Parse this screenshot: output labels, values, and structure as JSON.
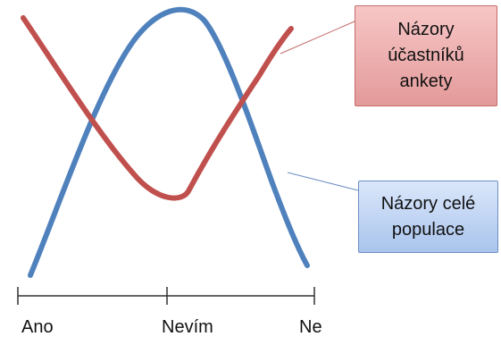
{
  "callouts": {
    "survey": "Názory\núčastníků\nankety",
    "population": "Názory celé\npopulace"
  },
  "axis": {
    "labels": [
      "Ano",
      "Nevím",
      "Ne"
    ]
  },
  "colors": {
    "survey_curve": "#c0504d",
    "population_curve": "#4f81bd",
    "axis": "#333333",
    "survey_fill": "#f2b5b5",
    "population_fill": "#c6d9f5"
  }
}
